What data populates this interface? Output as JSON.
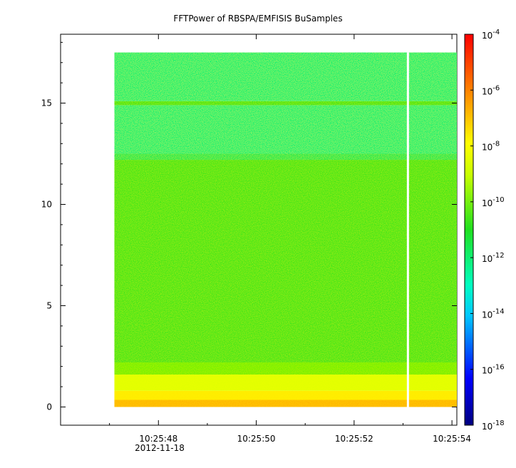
{
  "chart_data": {
    "type": "heatmap",
    "title": "FFTPower of RBSPA/EMFISIS  BuSamples",
    "xlabel": "",
    "ylabel": "",
    "x_date_label": "2012-11-18",
    "x_ticks": [
      {
        "label": "10:25:48",
        "value": 48
      },
      {
        "label": "10:25:50",
        "value": 50
      },
      {
        "label": "10:25:52",
        "value": 52
      },
      {
        "label": "10:25:54",
        "value": 54
      }
    ],
    "x_minor_ticks": [
      47,
      49,
      51,
      53
    ],
    "xlim_seconds_after_10_25": [
      46.0,
      54.1
    ],
    "data_x_range_seconds_after_10_25": [
      47.1,
      54.1
    ],
    "gap_at_seconds_after_10_25": 53.1,
    "y_ticks": [
      0,
      5,
      10,
      15
    ],
    "ylim": [
      -0.9,
      18.4
    ],
    "data_y_range": [
      0,
      17.5
    ],
    "colorbar": {
      "scale": "log",
      "range": [
        1e-18,
        0.0001
      ],
      "ticks": [
        {
          "label": "10",
          "exp": "-4",
          "value": -4
        },
        {
          "label": "10",
          "exp": "-6",
          "value": -6
        },
        {
          "label": "10",
          "exp": "-8",
          "value": -8
        },
        {
          "label": "10",
          "exp": "-10",
          "value": -10
        },
        {
          "label": "10",
          "exp": "-12",
          "value": -12
        },
        {
          "label": "10",
          "exp": "-14",
          "value": -14
        },
        {
          "label": "10",
          "exp": "-16",
          "value": -16
        },
        {
          "label": "10",
          "exp": "-18",
          "value": -18
        }
      ]
    },
    "bands": [
      {
        "y_from": 0.0,
        "y_to": 0.35,
        "log_power": -6.8
      },
      {
        "y_from": 0.35,
        "y_to": 0.8,
        "log_power": -7.6
      },
      {
        "y_from": 0.8,
        "y_to": 1.6,
        "log_power": -8.5
      },
      {
        "y_from": 1.6,
        "y_to": 2.2,
        "log_power": -10.0
      },
      {
        "y_from": 2.2,
        "y_to": 12.2,
        "log_power": -10.6
      },
      {
        "y_from": 12.2,
        "y_to": 12.5,
        "log_power": -11.6
      },
      {
        "y_from": 12.5,
        "y_to": 14.9,
        "log_power": -12.0
      },
      {
        "y_from": 14.9,
        "y_to": 15.1,
        "log_power": -10.6
      },
      {
        "y_from": 15.1,
        "y_to": 17.5,
        "log_power": -12.0
      }
    ],
    "grid": false,
    "legend": "colorbar-right"
  }
}
